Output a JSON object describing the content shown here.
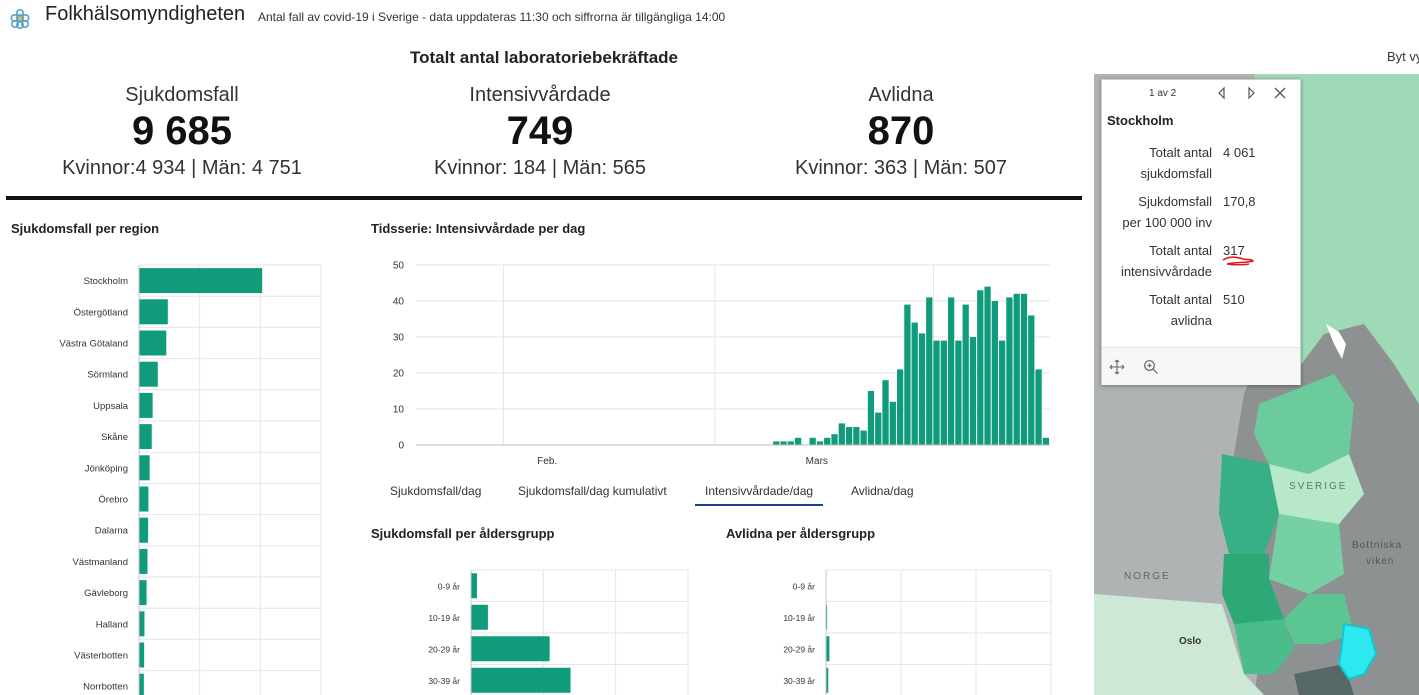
{
  "header": {
    "brand": "Folkhälsomyndigheten",
    "subtitle": "Antal fall av covid-19 i Sverige - data uppdateras 11:30 och siffrorna är tillgängliga 14:00",
    "switch_view": "Byt vy"
  },
  "totals": {
    "title": "Totalt antal laboratoriebekräftade",
    "cases": {
      "label": "Sjukdomsfall",
      "value": "9 685",
      "split": "Kvinnor:4 934 | Män: 4 751"
    },
    "icu": {
      "label": "Intensivvårdade",
      "value": "749",
      "split": "Kvinnor: 184 | Män: 565"
    },
    "deaths": {
      "label": "Avlidna",
      "value": "870",
      "split": "Kvinnor: 363 | Män: 507"
    }
  },
  "colors": {
    "bar": "#109c7c",
    "grid": "#e6e6e6",
    "accent_tab": "#1b3f8c",
    "highlight": "#2ee8f0"
  },
  "panels": {
    "region_title": "Sjukdomsfall per region",
    "timeseries_title": "Tidsserie: Intensivvårdade per dag",
    "age_cases_title": "Sjukdomsfall per åldersgrupp",
    "age_deaths_title": "Avlidna per åldersgrupp"
  },
  "tabs": [
    {
      "label": "Sjukdomsfall/dag",
      "active": false
    },
    {
      "label": "Sjukdomsfall/dag kumulativt",
      "active": false
    },
    {
      "label": "Intensivvårdade/dag",
      "active": true
    },
    {
      "label": "Avlidna/dag",
      "active": false
    }
  ],
  "chart_data": [
    {
      "type": "bar",
      "orientation": "horizontal",
      "title": "Sjukdomsfall per region",
      "categories": [
        "Stockholm",
        "Östergötland",
        "Västra Götaland",
        "Sörmland",
        "Uppsala",
        "Skåne",
        "Jönköping",
        "Örebro",
        "Dalarna",
        "Västmanland",
        "Gävleborg",
        "Halland",
        "Västerbotten",
        "Norrbotten"
      ],
      "values": [
        4061,
        950,
        900,
        620,
        450,
        420,
        350,
        310,
        300,
        280,
        250,
        180,
        170,
        160
      ],
      "xlim": [
        0,
        6000
      ]
    },
    {
      "type": "bar",
      "title": "Tidsserie: Intensivvårdade per dag",
      "x_tick_labels": [
        "Feb.",
        "Mars"
      ],
      "y_ticks": [
        0,
        10,
        20,
        30,
        40,
        50
      ],
      "ylim": [
        0,
        50
      ],
      "start_date": "2020-01-20",
      "values": [
        0,
        0,
        0,
        0,
        0,
        0,
        0,
        0,
        0,
        0,
        0,
        0,
        0,
        0,
        0,
        0,
        0,
        0,
        0,
        0,
        0,
        0,
        0,
        0,
        0,
        0,
        0,
        0,
        0,
        0,
        0,
        0,
        0,
        0,
        0,
        0,
        0,
        0,
        0,
        0,
        0,
        0,
        0,
        0,
        0,
        0,
        0,
        0,
        0,
        1,
        1,
        1,
        2,
        0,
        2,
        1,
        2,
        3,
        6,
        5,
        5,
        4,
        15,
        9,
        18,
        12,
        21,
        39,
        34,
        31,
        41,
        29,
        29,
        41,
        29,
        39,
        30,
        43,
        44,
        40,
        29,
        41,
        42,
        42,
        36,
        21,
        2
      ]
    },
    {
      "type": "bar",
      "orientation": "horizontal",
      "title": "Sjukdomsfall per åldersgrupp",
      "categories": [
        "0-9 år",
        "10-19 år",
        "20-29 år",
        "30-39 år"
      ],
      "values": [
        60,
        170,
        790,
        1000
      ],
      "xlim": [
        0,
        2180
      ]
    },
    {
      "type": "bar",
      "orientation": "horizontal",
      "title": "Avlidna per åldersgrupp",
      "categories": [
        "0-9 år",
        "10-19 år",
        "20-29 år",
        "30-39 år"
      ],
      "values": [
        0,
        1,
        3,
        2
      ],
      "xlim": [
        0,
        200
      ]
    }
  ],
  "map": {
    "labels": {
      "norway": "NORGE",
      "sweden": "SVERIGE",
      "bothnia_1": "Bottniska",
      "bothnia_2": "viken",
      "oslo": "Oslo"
    },
    "popup": {
      "pager": "1 av 2",
      "title": "Stockholm",
      "rows": [
        {
          "key_1": "Totalt antal",
          "key_2": "sjukdomsfall",
          "value": "4 061"
        },
        {
          "key_1": "Sjukdomsfall",
          "key_2": "per 100 000 inv",
          "value": "170,8"
        },
        {
          "key_1": "Totalt antal",
          "key_2": "intensivvårdade",
          "value": "317"
        },
        {
          "key_1": "Totalt antal",
          "key_2": "avlidna",
          "value": "510"
        }
      ],
      "icons": {
        "prev": "triangle-left-icon",
        "next": "triangle-right-icon",
        "close": "close-icon",
        "pan": "move-icon",
        "zoom": "zoom-in-icon"
      }
    }
  }
}
